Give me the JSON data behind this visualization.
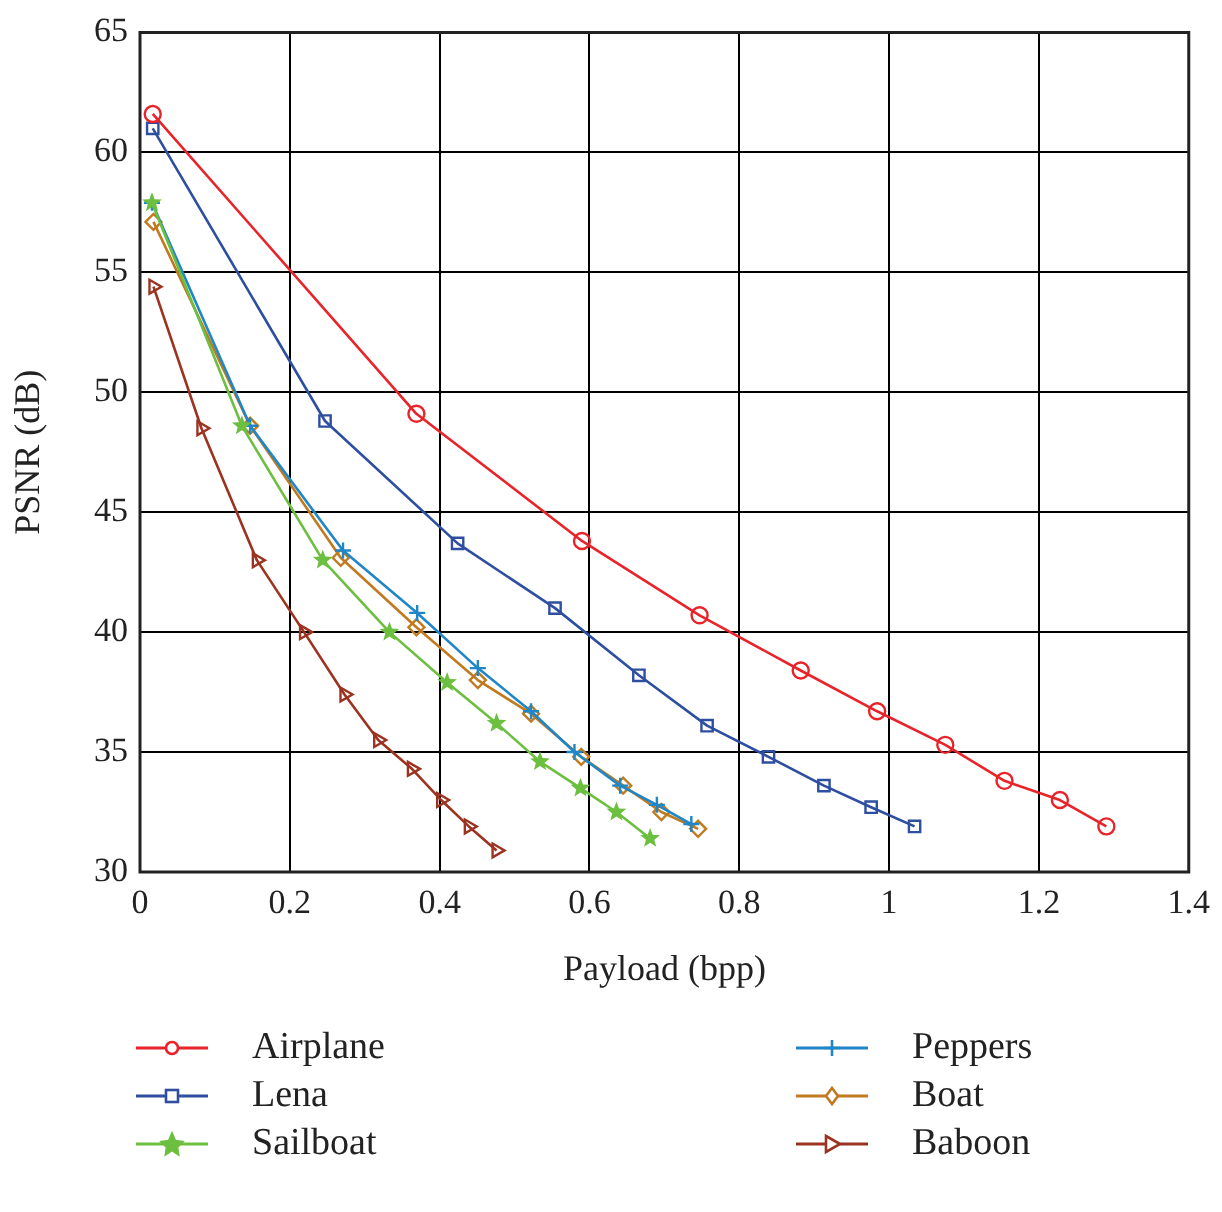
{
  "chart_data": {
    "type": "line",
    "xlabel": "Payload (bpp)",
    "ylabel": "PSNR (dB)",
    "xlim": [
      0,
      1.4
    ],
    "xticks": [
      0,
      0.2,
      0.4,
      0.6,
      0.8,
      1,
      1.2,
      1.4
    ],
    "ylim": [
      30,
      65
    ],
    "yticks": [
      30,
      35,
      40,
      45,
      50,
      55,
      60,
      65
    ],
    "grid": true,
    "legend": "bottom",
    "line_style": "solid",
    "series": [
      {
        "name": "Airplane",
        "color": "#e8232a",
        "marker": "circle",
        "x": [
          0.017,
          0.369,
          0.59,
          0.747,
          0.882,
          0.984,
          1.075,
          1.154,
          1.228,
          1.29
        ],
        "values": [
          61.6,
          49.1,
          43.8,
          40.7,
          38.4,
          36.7,
          35.3,
          33.8,
          33.0,
          31.9
        ]
      },
      {
        "name": "Lena",
        "color": "#2e4fa0",
        "marker": "square",
        "x": [
          0.017,
          0.247,
          0.424,
          0.554,
          0.666,
          0.757,
          0.839,
          0.913,
          0.976,
          1.034
        ],
        "values": [
          61.0,
          48.8,
          43.7,
          41.0,
          38.2,
          36.1,
          34.8,
          33.6,
          32.7,
          31.9
        ]
      },
      {
        "name": "Sailboat",
        "color": "#6cbf3f",
        "marker": "star",
        "x": [
          0.016,
          0.136,
          0.244,
          0.333,
          0.41,
          0.476,
          0.534,
          0.588,
          0.636,
          0.681
        ],
        "values": [
          57.9,
          48.6,
          43.0,
          40.0,
          37.9,
          36.2,
          34.6,
          33.5,
          32.5,
          31.4
        ]
      },
      {
        "name": "Peppers",
        "color": "#1f86c8",
        "marker": "cross",
        "x": [
          0.016,
          0.147,
          0.271,
          0.37,
          0.451,
          0.522,
          0.58,
          0.641,
          0.69,
          0.736
        ],
        "values": [
          57.9,
          48.6,
          43.4,
          40.8,
          38.5,
          36.7,
          35.0,
          33.6,
          32.8,
          32.0
        ]
      },
      {
        "name": "Boat",
        "color": "#c07a1f",
        "marker": "diamond",
        "x": [
          0.018,
          0.147,
          0.268,
          0.369,
          0.451,
          0.522,
          0.589,
          0.645,
          0.696,
          0.745
        ],
        "values": [
          57.1,
          48.6,
          43.1,
          40.2,
          38.0,
          36.6,
          34.8,
          33.6,
          32.5,
          31.8
        ]
      },
      {
        "name": "Baboon",
        "color": "#9b3320",
        "marker": "triangle",
        "x": [
          0.018,
          0.082,
          0.156,
          0.219,
          0.273,
          0.318,
          0.363,
          0.402,
          0.439,
          0.476
        ],
        "values": [
          54.4,
          48.5,
          43.0,
          40.0,
          37.4,
          35.5,
          34.3,
          33.0,
          31.9,
          30.9
        ]
      }
    ]
  }
}
